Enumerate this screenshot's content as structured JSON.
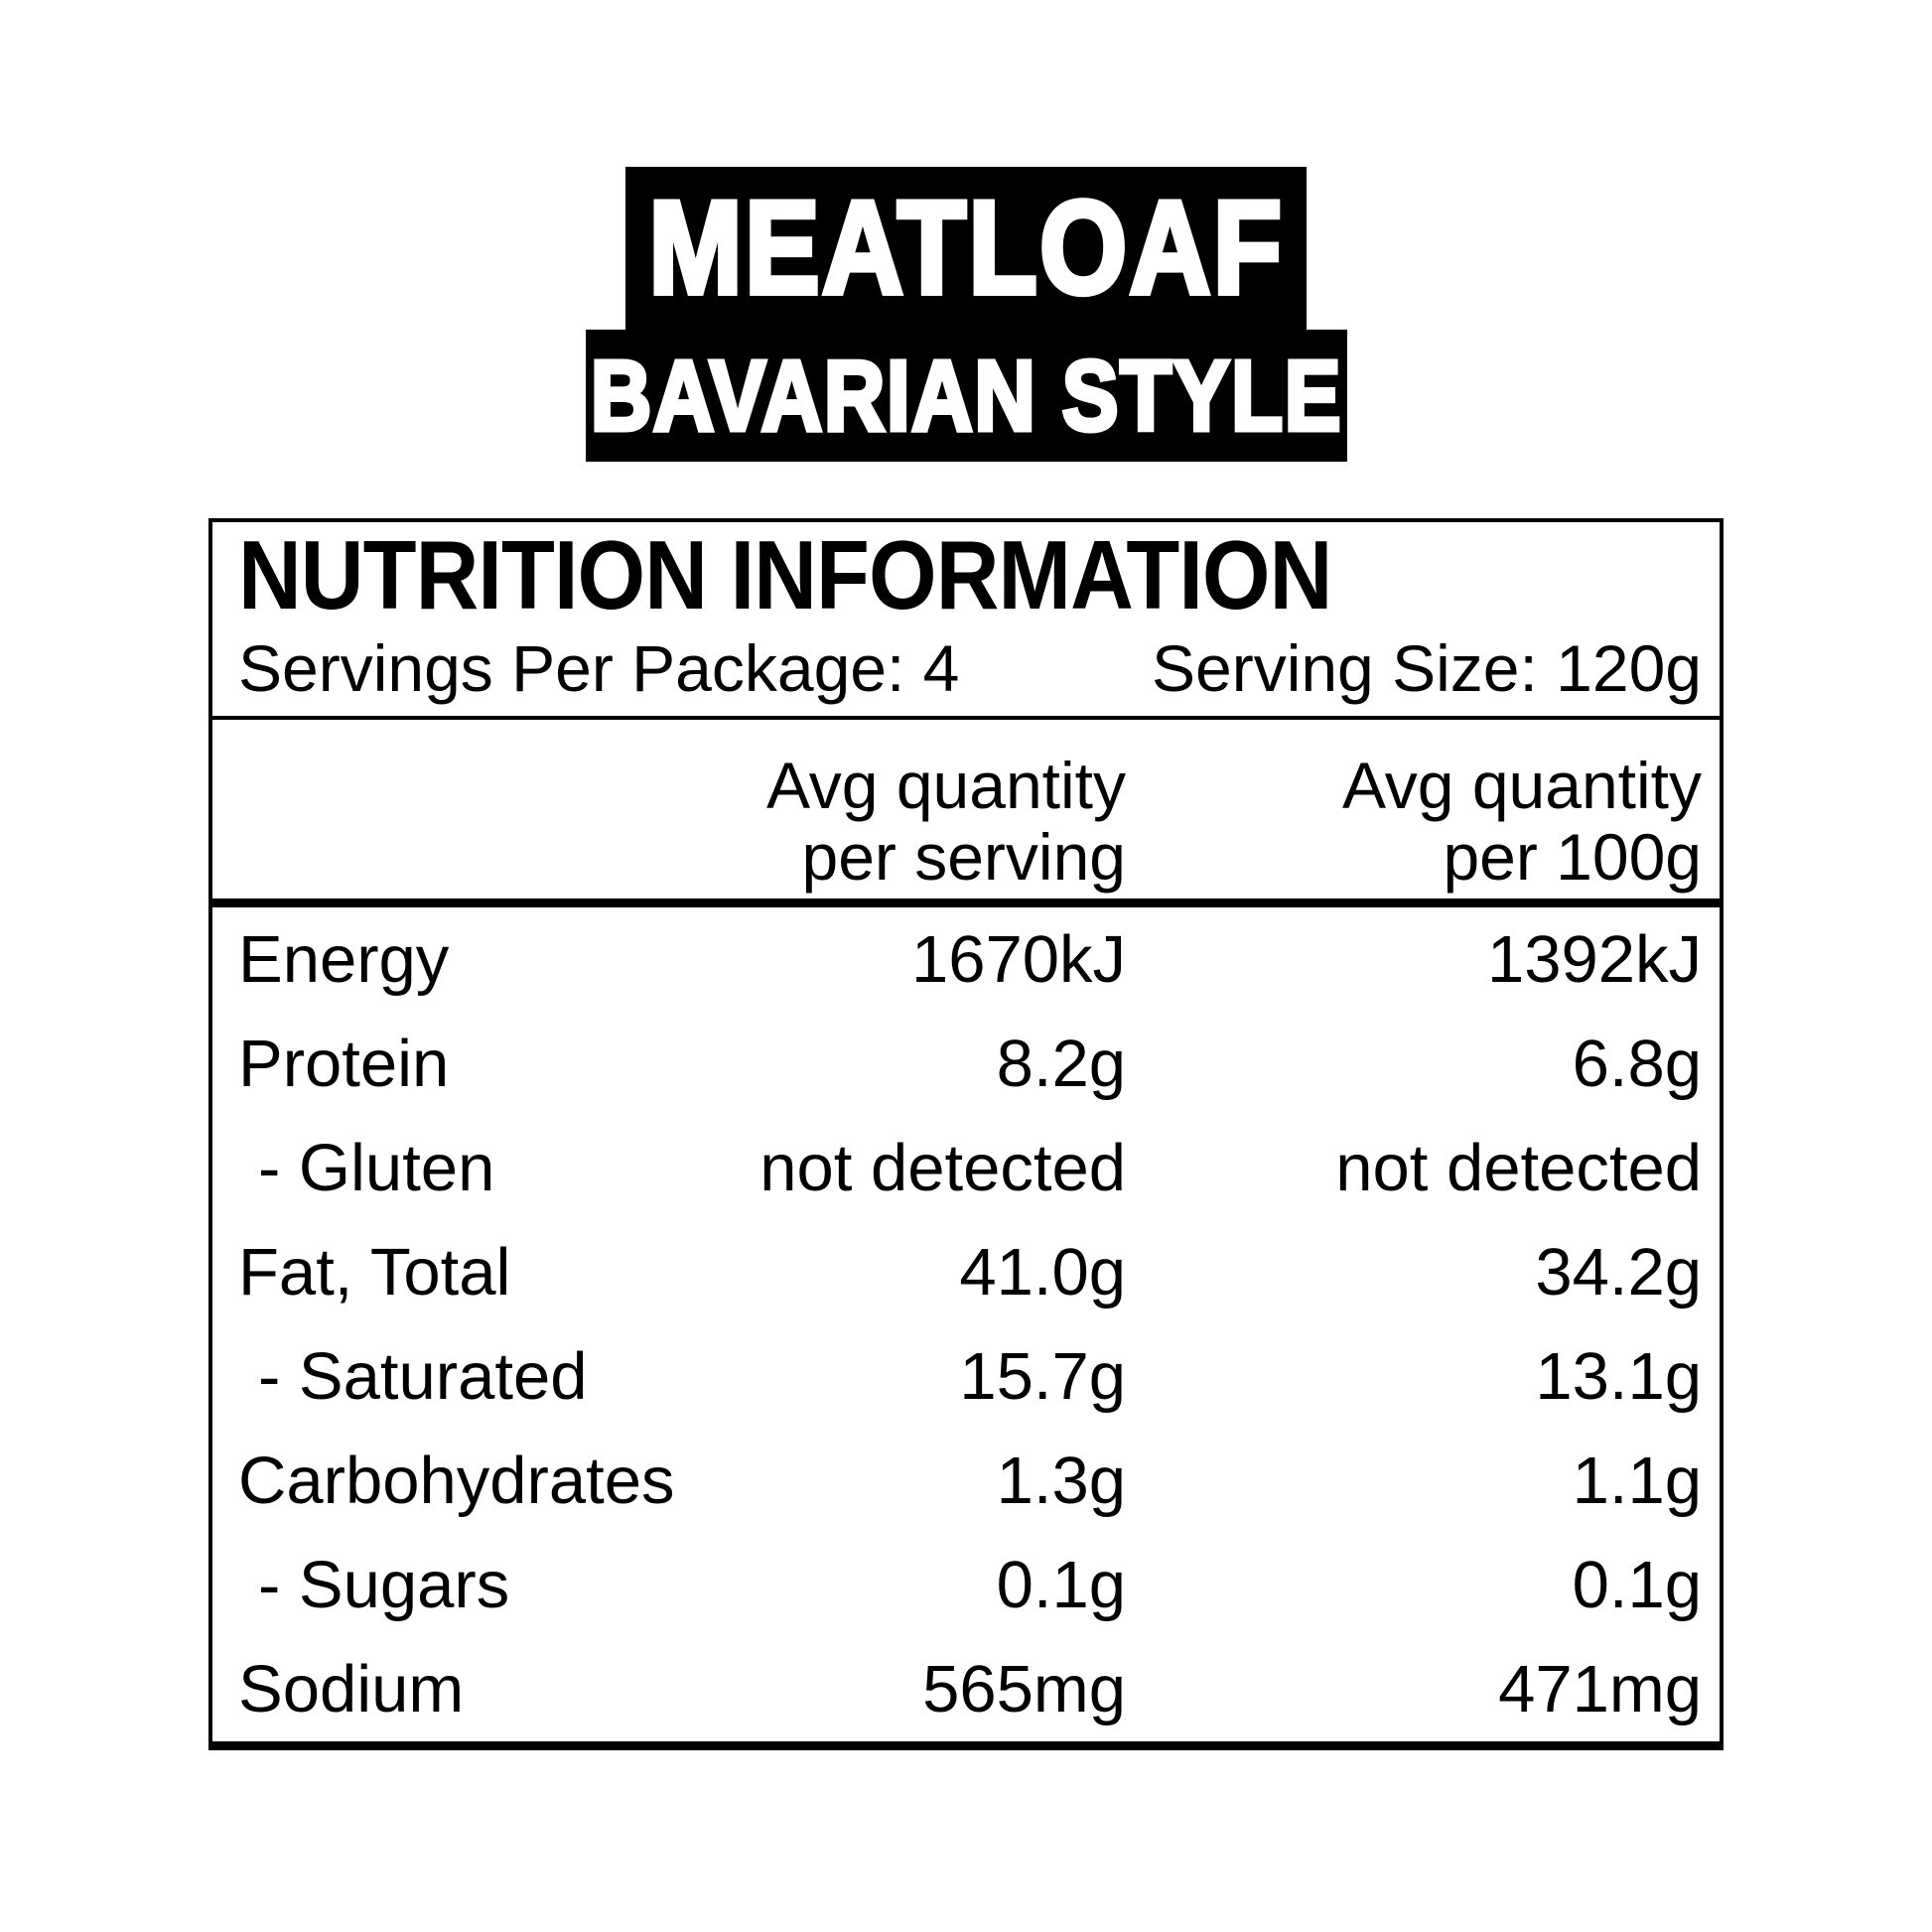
{
  "title": {
    "product": "MEATLOAF",
    "variant": "BAVARIAN STYLE"
  },
  "panel": {
    "heading": "NUTRITION INFORMATION",
    "servings_per_package": "Servings Per Package: 4",
    "serving_size": "Serving Size: 120g",
    "col_headers": [
      {
        "line1": "Avg quantity",
        "line2": "per serving"
      },
      {
        "line1": "Avg quantity",
        "line2": "per 100g"
      }
    ],
    "rows": [
      {
        "label": "Energy",
        "sub": false,
        "per_serving": "1670kJ",
        "per_100g": "1392kJ"
      },
      {
        "label": "Protein",
        "sub": false,
        "per_serving": "8.2g",
        "per_100g": "6.8g"
      },
      {
        "label": "- Gluten",
        "sub": true,
        "per_serving": "not detected",
        "per_100g": "not detected"
      },
      {
        "label": "Fat, Total",
        "sub": false,
        "per_serving": "41.0g",
        "per_100g": "34.2g"
      },
      {
        "label": "- Saturated",
        "sub": true,
        "per_serving": "15.7g",
        "per_100g": "13.1g"
      },
      {
        "label": "Carbohydrates",
        "sub": false,
        "per_serving": "1.3g",
        "per_100g": "1.1g"
      },
      {
        "label": "- Sugars",
        "sub": true,
        "per_serving": "0.1g",
        "per_100g": "0.1g"
      },
      {
        "label": "Sodium",
        "sub": false,
        "per_serving": "565mg",
        "per_100g": "471mg"
      }
    ]
  },
  "colors": {
    "ink": "#000000",
    "paper": "#ffffff"
  }
}
